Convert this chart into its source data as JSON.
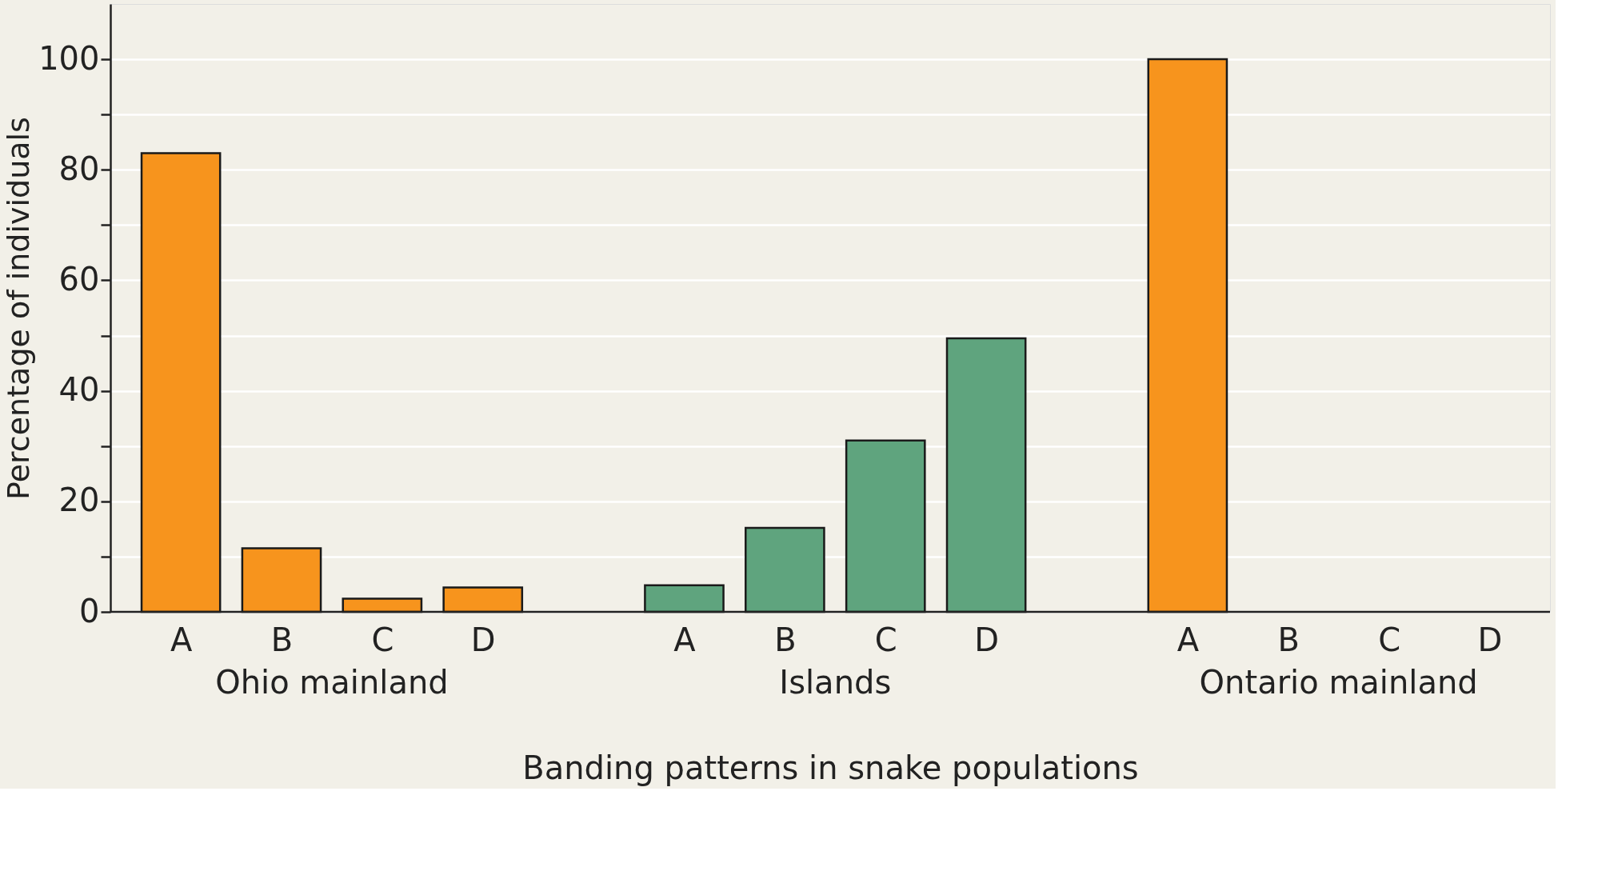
{
  "chart_data": {
    "type": "bar",
    "xlabel": "Banding patterns in snake populations",
    "ylabel": "Percentage of individuals",
    "categories": [
      "A",
      "B",
      "C",
      "D",
      "A",
      "B",
      "C",
      "D",
      "A",
      "B",
      "C",
      "D"
    ],
    "values": [
      83,
      11.5,
      2.4,
      4.4,
      4.8,
      15.2,
      31,
      49.5,
      100,
      null,
      null,
      null
    ],
    "colors": [
      "#f7941d",
      "#f7941d",
      "#f7941d",
      "#f7941d",
      "#5fa47e",
      "#5fa47e",
      "#5fa47e",
      "#5fa47e",
      "#f7941d",
      "#f7941d",
      "#f7941d",
      "#f7941d"
    ],
    "annotations": [
      "Ohio mainland",
      "Islands",
      "Ontario mainland"
    ],
    "ylim": [
      0,
      110
    ],
    "yticks": [
      0,
      {
        "value": 10,
        "label": null
      },
      20,
      {
        "value": 30,
        "label": null
      },
      40,
      {
        "value": 50,
        "label": null
      },
      60,
      {
        "value": 70,
        "label": null
      },
      80,
      {
        "value": 90,
        "label": null
      },
      100
    ],
    "grid": "y"
  }
}
